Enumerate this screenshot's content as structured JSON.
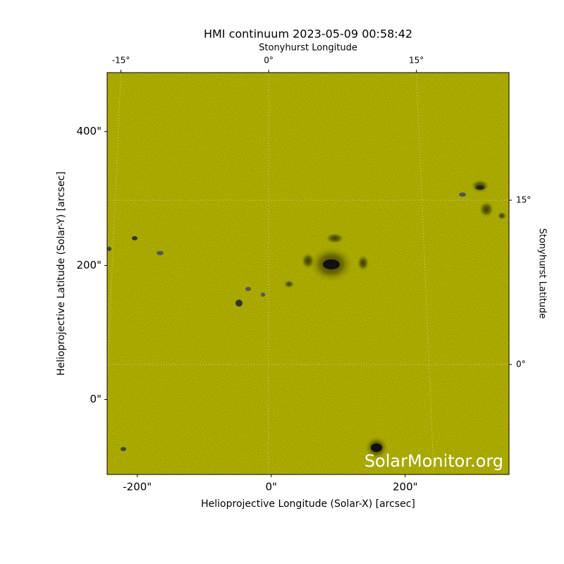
{
  "chart_data": {
    "type": "image",
    "title": "HMI continuum 2023-05-09 00:58:42",
    "xlabel": "Helioprojective Longitude (Solar-X) [arcsec]",
    "ylabel": "Helioprojective Latitude (Solar-Y) [arcsec]",
    "x2label": "Stonyhurst Longitude",
    "y2label": "Stonyhurst Latitude",
    "watermark": "SolarMonitor.org",
    "color": "#cccc00",
    "xlim": [
      -245,
      355
    ],
    "xticks": [
      {
        "value": -200,
        "label": "-200\""
      },
      {
        "value": 0,
        "label": "0\""
      },
      {
        "value": 200,
        "label": "200\""
      }
    ],
    "ylim": [
      -112,
      488
    ],
    "yticks": [
      {
        "value": 0,
        "label": "0\""
      },
      {
        "value": 200,
        "label": "200\""
      },
      {
        "value": 400,
        "label": "400\""
      }
    ],
    "x2lim": [
      -16.4,
      24.4
    ],
    "x2ticks": [
      {
        "value": -15,
        "label": "-15°"
      },
      {
        "value": 0,
        "label": "0°"
      },
      {
        "value": 15,
        "label": "15°"
      }
    ],
    "y2lim": [
      -10.04,
      26.65
    ],
    "y2ticks": [
      {
        "value": 0,
        "label": "0°"
      },
      {
        "value": 15,
        "label": "15°"
      }
    ],
    "grid": true
  }
}
